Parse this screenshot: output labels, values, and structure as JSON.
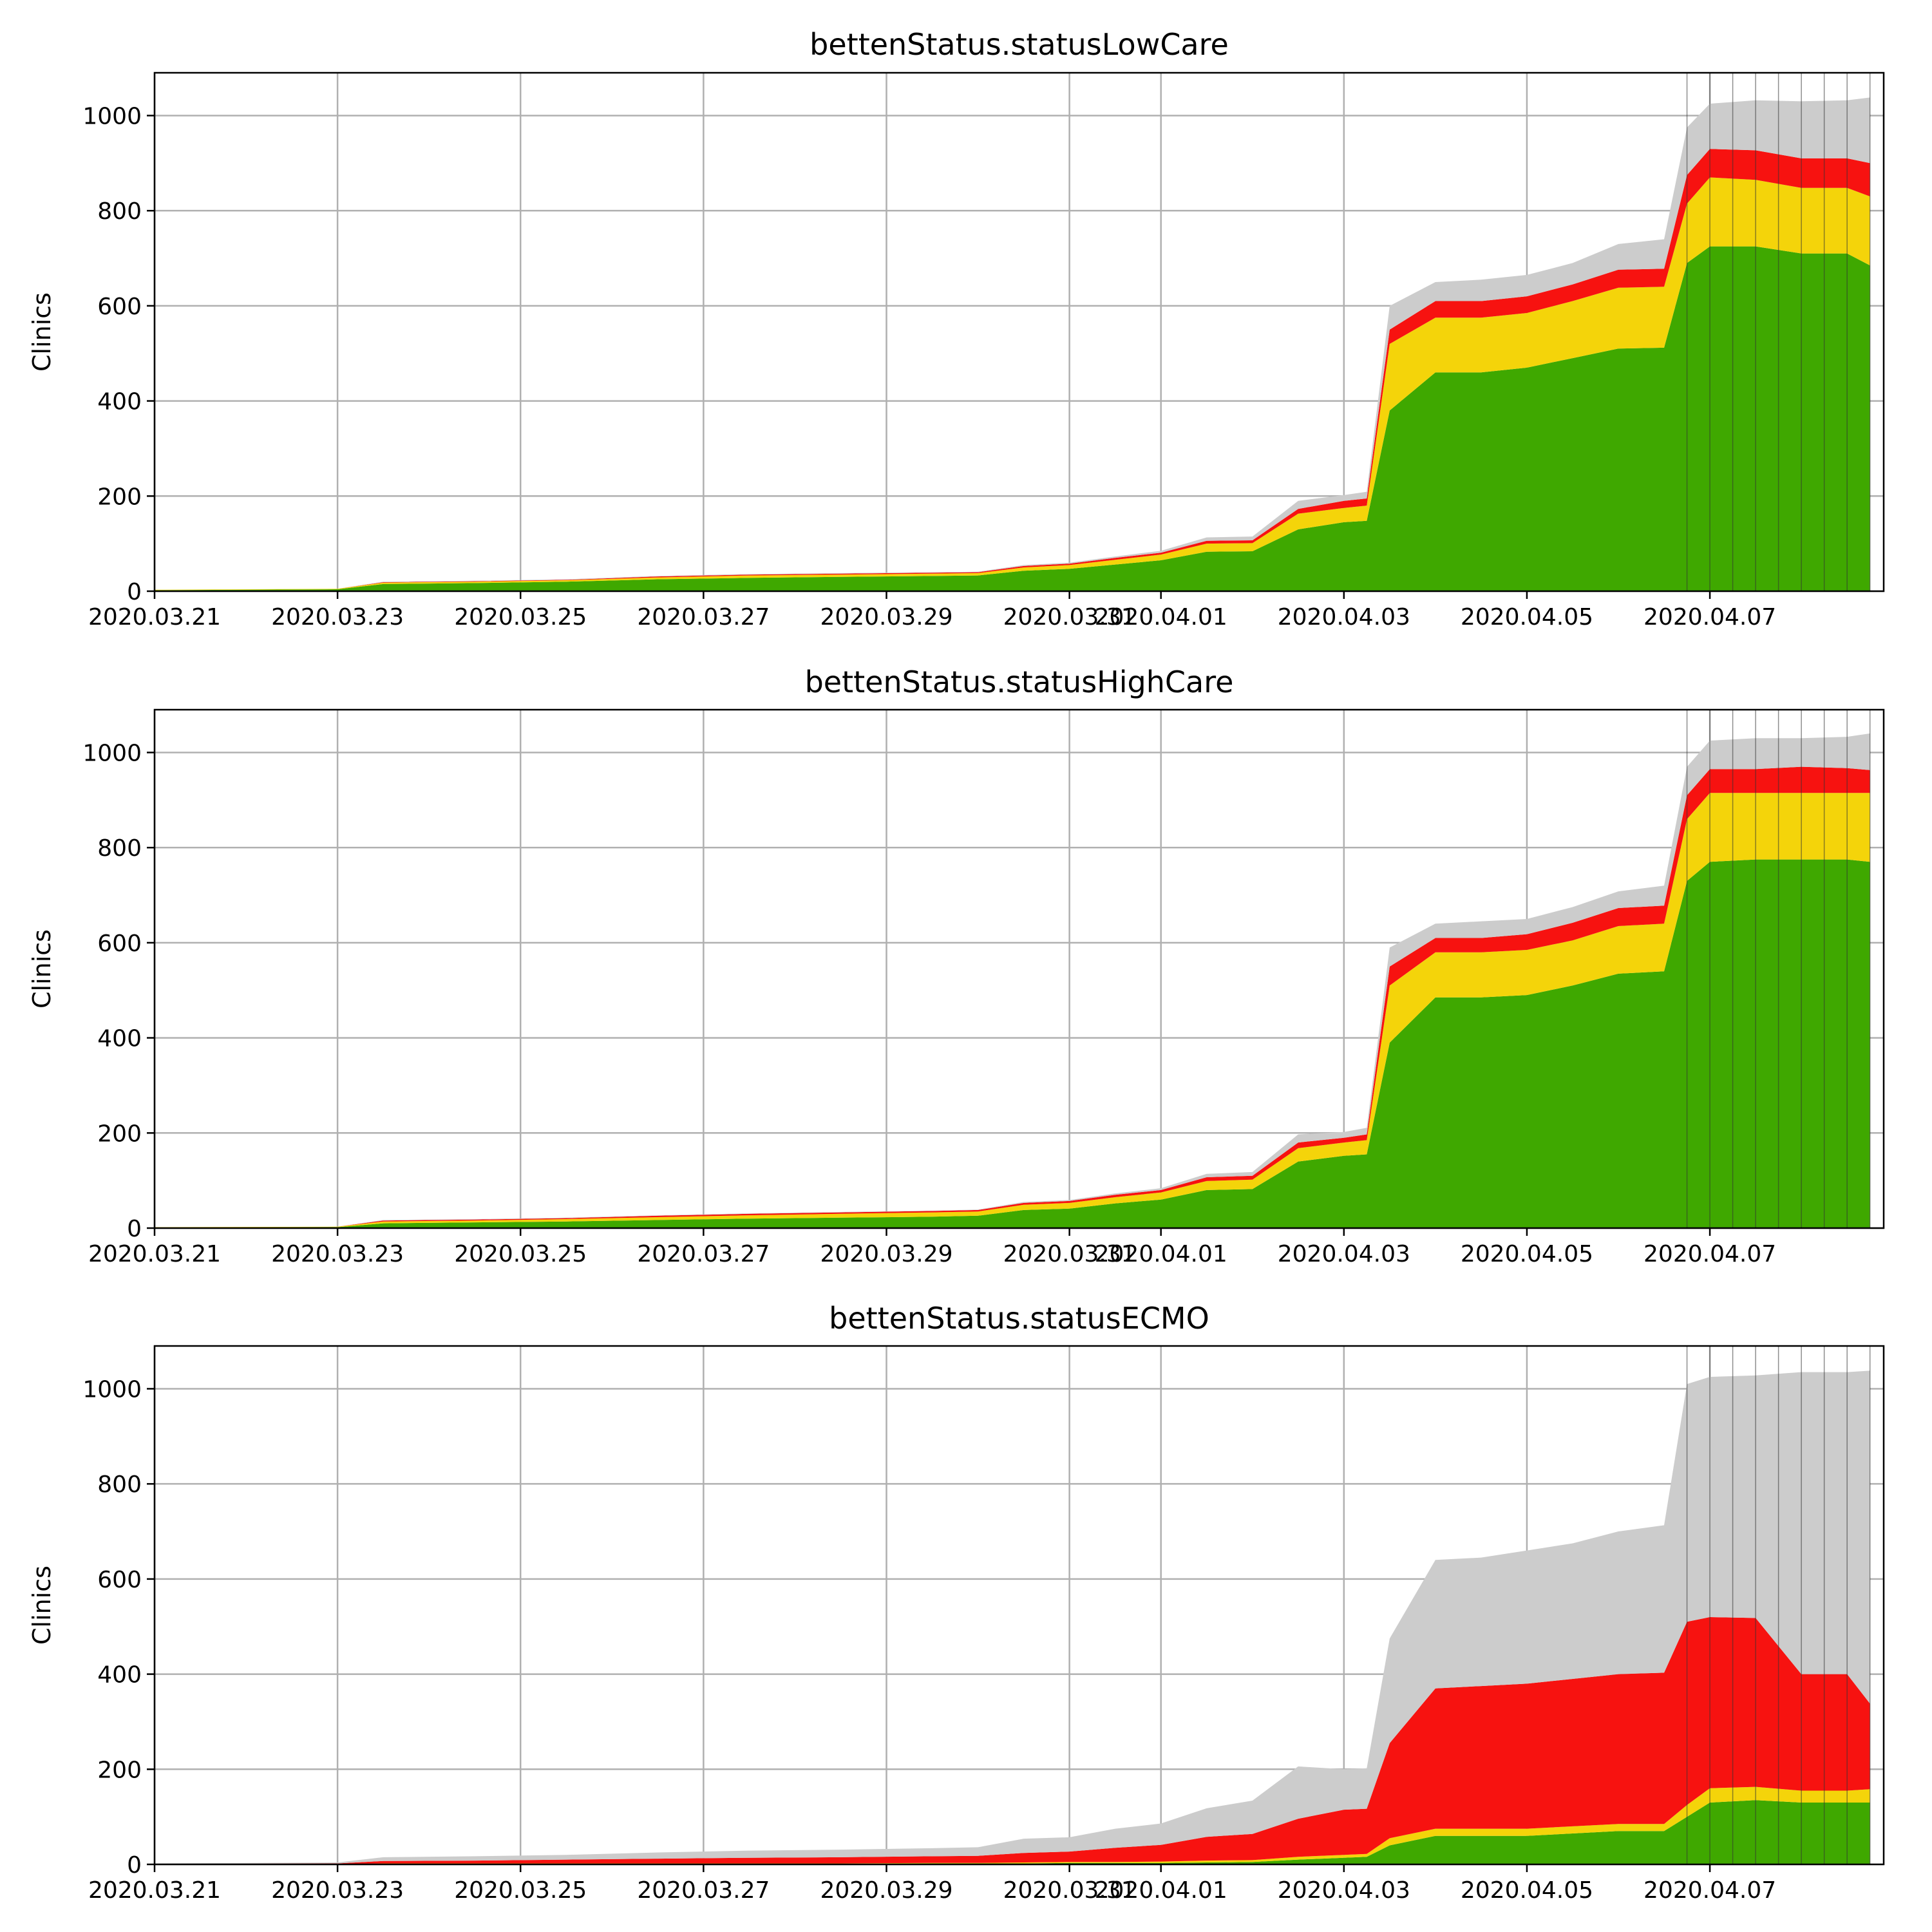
{
  "colors": {
    "green": "#3fa800",
    "yellow": "#f4d40a",
    "red": "#f71210",
    "gray": "#cccccc",
    "grid": "#b0b0b0"
  },
  "chart_data": [
    {
      "type": "area",
      "title": "bettenStatus.statusLowCare",
      "ylabel": "Clinics",
      "xlim": [
        "2020.03.21",
        "2020.04.08.9"
      ],
      "ylim": [
        0,
        1090
      ],
      "grid": true,
      "x_ticks": [
        "2020.03.21",
        "2020.03.23",
        "2020.03.25",
        "2020.03.27",
        "2020.03.29",
        "2020.03.31",
        "2020.04.01",
        "2020.04.03",
        "2020.04.05",
        "2020.04.07"
      ],
      "y_ticks": [
        0,
        200,
        400,
        600,
        800,
        1000
      ],
      "x": [
        "2020.03.21 00:00",
        "2020.03.23 00:00",
        "2020.03.23 12:00",
        "2020.03.24 12:00",
        "2020.03.25 12:00",
        "2020.03.26 12:00",
        "2020.03.27 12:00",
        "2020.03.28 12:00",
        "2020.03.29 12:00",
        "2020.03.30 00:00",
        "2020.03.30 12:00",
        "2020.03.31 00:00",
        "2020.03.31 12:00",
        "2020.04.01 00:00",
        "2020.04.01 12:00",
        "2020.04.02 00:00",
        "2020.04.02 12:00",
        "2020.04.03 00:00",
        "2020.04.03 06:00",
        "2020.04.03 12:00",
        "2020.04.04 00:00",
        "2020.04.04 12:00",
        "2020.04.05 00:00",
        "2020.04.05 12:00",
        "2020.04.06 00:00",
        "2020.04.06 12:00",
        "2020.04.06 18:00",
        "2020.04.07 00:00",
        "2020.04.07 12:00",
        "2020.04.08 00:00",
        "2020.04.08 12:00",
        "2020.04.08 18:00"
      ],
      "series": [
        {
          "color": "green",
          "values": [
            2,
            4,
            15,
            17,
            20,
            25,
            28,
            30,
            32,
            33,
            43,
            47,
            56,
            65,
            83,
            84,
            130,
            145,
            148,
            380,
            460,
            460,
            470,
            490,
            510,
            512,
            690,
            725,
            725,
            710,
            710,
            685
          ]
        },
        {
          "color": "yellow",
          "values": [
            1,
            1,
            3,
            3,
            3,
            4,
            5,
            5,
            5,
            5,
            7,
            8,
            10,
            12,
            17,
            17,
            33,
            30,
            32,
            140,
            115,
            115,
            115,
            120,
            128,
            128,
            125,
            145,
            140,
            138,
            138,
            145
          ]
        },
        {
          "color": "red",
          "values": [
            0,
            0,
            1,
            1,
            1,
            2,
            2,
            2,
            2,
            2,
            3,
            3,
            4,
            4,
            6,
            6,
            10,
            15,
            15,
            30,
            35,
            35,
            35,
            35,
            38,
            38,
            60,
            60,
            62,
            62,
            62,
            70
          ]
        },
        {
          "color": "gray",
          "values": [
            0,
            0,
            1,
            1,
            1,
            1,
            1,
            1,
            1,
            1,
            2,
            2,
            3,
            4,
            7,
            8,
            17,
            12,
            14,
            50,
            40,
            45,
            45,
            45,
            54,
            62,
            100,
            95,
            105,
            120,
            122,
            138
          ]
        }
      ]
    },
    {
      "type": "area",
      "title": "bettenStatus.statusHighCare",
      "ylabel": "Clinics",
      "xlim": [
        "2020.03.21",
        "2020.04.08.9"
      ],
      "ylim": [
        0,
        1090
      ],
      "grid": true,
      "x_ticks": [
        "2020.03.21",
        "2020.03.23",
        "2020.03.25",
        "2020.03.27",
        "2020.03.29",
        "2020.03.31",
        "2020.04.01",
        "2020.04.03",
        "2020.04.05",
        "2020.04.07"
      ],
      "y_ticks": [
        0,
        200,
        400,
        600,
        800,
        1000
      ],
      "x": [
        "2020.03.21 00:00",
        "2020.03.23 00:00",
        "2020.03.23 12:00",
        "2020.03.24 12:00",
        "2020.03.25 12:00",
        "2020.03.26 12:00",
        "2020.03.27 12:00",
        "2020.03.28 12:00",
        "2020.03.29 12:00",
        "2020.03.30 00:00",
        "2020.03.30 12:00",
        "2020.03.31 00:00",
        "2020.03.31 12:00",
        "2020.04.01 00:00",
        "2020.04.01 12:00",
        "2020.04.02 00:00",
        "2020.04.02 12:00",
        "2020.04.03 00:00",
        "2020.04.03 06:00",
        "2020.04.03 12:00",
        "2020.04.04 00:00",
        "2020.04.04 12:00",
        "2020.04.05 00:00",
        "2020.04.05 12:00",
        "2020.04.06 00:00",
        "2020.04.06 12:00",
        "2020.04.06 18:00",
        "2020.04.07 00:00",
        "2020.04.07 12:00",
        "2020.04.08 00:00",
        "2020.04.08 12:00",
        "2020.04.08 18:00"
      ],
      "series": [
        {
          "color": "green",
          "values": [
            1,
            2,
            10,
            12,
            14,
            17,
            20,
            22,
            24,
            26,
            38,
            41,
            52,
            60,
            80,
            82,
            140,
            152,
            155,
            390,
            485,
            485,
            490,
            510,
            535,
            540,
            730,
            770,
            775,
            775,
            775,
            770
          ]
        },
        {
          "color": "yellow",
          "values": [
            1,
            1,
            4,
            4,
            5,
            6,
            7,
            8,
            9,
            9,
            11,
            12,
            13,
            15,
            19,
            20,
            28,
            28,
            30,
            120,
            95,
            95,
            95,
            95,
            100,
            100,
            130,
            145,
            140,
            140,
            140,
            145
          ]
        },
        {
          "color": "red",
          "values": [
            0,
            0,
            2,
            2,
            2,
            3,
            3,
            3,
            3,
            3,
            4,
            4,
            5,
            5,
            8,
            8,
            12,
            10,
            12,
            40,
            30,
            30,
            33,
            37,
            38,
            38,
            50,
            50,
            50,
            55,
            52,
            48
          ]
        },
        {
          "color": "gray",
          "values": [
            0,
            0,
            1,
            1,
            1,
            1,
            1,
            1,
            1,
            1,
            2,
            2,
            3,
            4,
            7,
            8,
            17,
            12,
            14,
            40,
            30,
            35,
            32,
            33,
            35,
            42,
            60,
            60,
            65,
            60,
            66,
            77
          ]
        }
      ]
    },
    {
      "type": "area",
      "title": "bettenStatus.statusECMO",
      "ylabel": "Clinics",
      "xlim": [
        "2020.03.21",
        "2020.04.08.9"
      ],
      "ylim": [
        0,
        1090
      ],
      "grid": true,
      "x_ticks": [
        "2020.03.21",
        "2020.03.23",
        "2020.03.25",
        "2020.03.27",
        "2020.03.29",
        "2020.03.31",
        "2020.04.01",
        "2020.04.03",
        "2020.04.05",
        "2020.04.07"
      ],
      "y_ticks": [
        0,
        200,
        400,
        600,
        800,
        1000
      ],
      "x": [
        "2020.03.21 00:00",
        "2020.03.23 00:00",
        "2020.03.23 12:00",
        "2020.03.24 12:00",
        "2020.03.25 12:00",
        "2020.03.26 12:00",
        "2020.03.27 12:00",
        "2020.03.28 12:00",
        "2020.03.29 12:00",
        "2020.03.30 00:00",
        "2020.03.30 12:00",
        "2020.03.31 00:00",
        "2020.03.31 12:00",
        "2020.04.01 00:00",
        "2020.04.01 12:00",
        "2020.04.02 00:00",
        "2020.04.02 12:00",
        "2020.04.03 00:00",
        "2020.04.03 06:00",
        "2020.04.03 12:00",
        "2020.04.04 00:00",
        "2020.04.04 12:00",
        "2020.04.05 00:00",
        "2020.04.05 12:00",
        "2020.04.06 00:00",
        "2020.04.06 12:00",
        "2020.04.06 18:00",
        "2020.04.07 00:00",
        "2020.04.07 12:00",
        "2020.04.08 00:00",
        "2020.04.08 12:00",
        "2020.04.08 18:00"
      ],
      "series": [
        {
          "color": "green",
          "values": [
            0,
            0,
            1,
            1,
            1,
            1,
            1,
            1,
            2,
            2,
            2,
            3,
            3,
            3,
            4,
            5,
            10,
            14,
            16,
            40,
            60,
            60,
            60,
            65,
            70,
            70,
            100,
            130,
            135,
            130,
            130,
            130
          ]
        },
        {
          "color": "yellow",
          "values": [
            0,
            0,
            1,
            1,
            1,
            1,
            1,
            1,
            1,
            1,
            2,
            2,
            2,
            3,
            4,
            4,
            6,
            6,
            6,
            15,
            15,
            15,
            15,
            15,
            15,
            15,
            25,
            30,
            28,
            25,
            25,
            28
          ]
        },
        {
          "color": "red",
          "values": [
            1,
            2,
            5,
            6,
            8,
            10,
            12,
            13,
            14,
            15,
            20,
            22,
            30,
            35,
            50,
            55,
            80,
            95,
            95,
            200,
            295,
            300,
            305,
            310,
            315,
            318,
            385,
            360,
            355,
            245,
            245,
            180
          ]
        },
        {
          "color": "gray",
          "values": [
            1,
            2,
            8,
            9,
            10,
            13,
            15,
            16,
            17,
            18,
            30,
            30,
            40,
            45,
            60,
            70,
            110,
            85,
            85,
            220,
            270,
            270,
            280,
            285,
            300,
            310,
            500,
            505,
            510,
            635,
            635,
            700
          ]
        }
      ]
    }
  ]
}
